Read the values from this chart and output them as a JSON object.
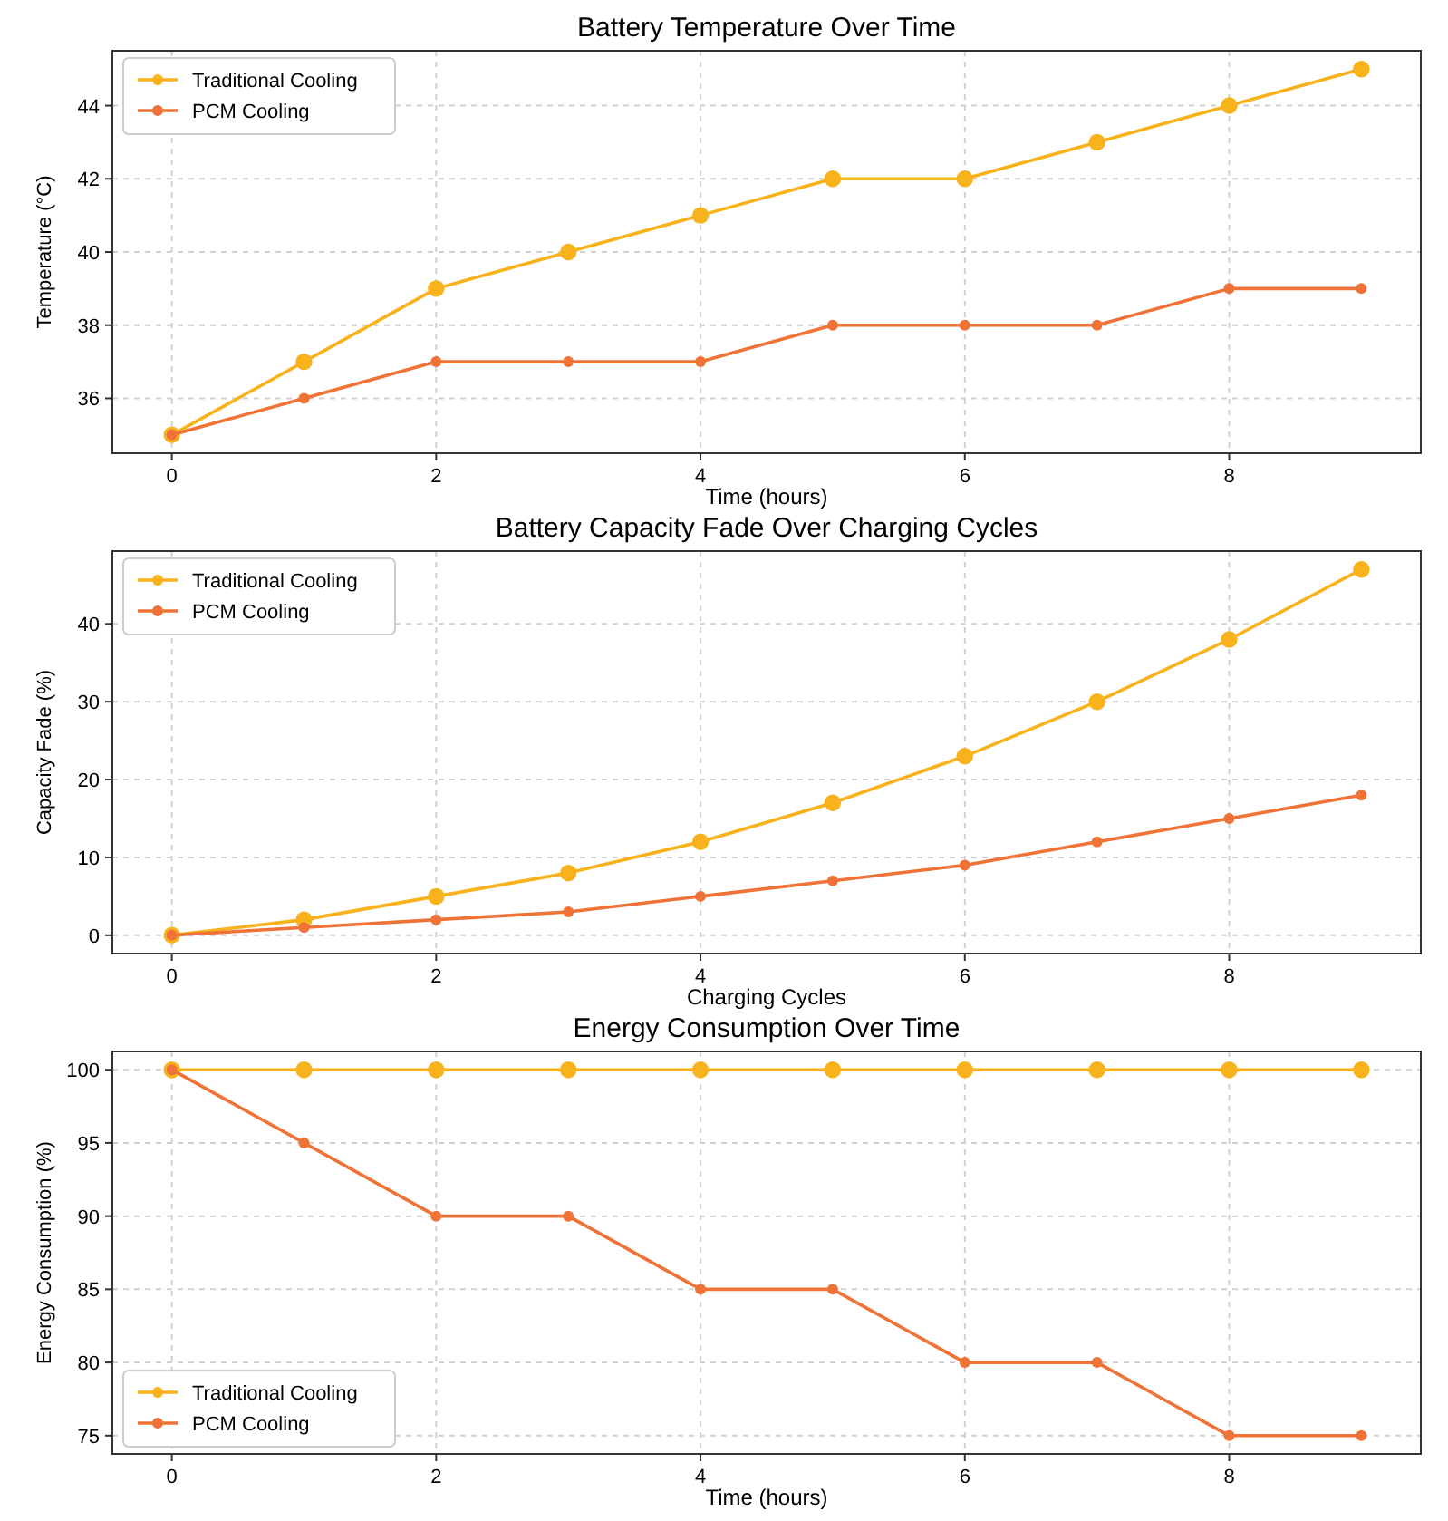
{
  "chart_data": [
    {
      "type": "line",
      "title": "Battery Temperature Over Time",
      "xlabel": "Time (hours)",
      "ylabel": "Temperature (°C)",
      "x": [
        0,
        1,
        2,
        3,
        4,
        5,
        6,
        7,
        8,
        9
      ],
      "xlim": [
        -0.45,
        9.45
      ],
      "xticks": [
        0,
        2,
        4,
        6,
        8
      ],
      "ylim": [
        34.5,
        45.5
      ],
      "yticks": [
        36,
        38,
        40,
        42,
        44
      ],
      "grid": true,
      "legend": "top left",
      "marker": "circle",
      "series": [
        {
          "name": "Traditional Cooling",
          "color": "#f7b21c",
          "values": [
            35,
            37,
            39,
            40,
            41,
            42,
            42,
            43,
            44,
            45
          ]
        },
        {
          "name": "PCM Cooling",
          "color": "#ef7236",
          "values": [
            35,
            36,
            37,
            37,
            37,
            38,
            38,
            38,
            39,
            39
          ]
        }
      ]
    },
    {
      "type": "line",
      "title": "Battery Capacity Fade Over Charging Cycles",
      "xlabel": "Charging Cycles",
      "ylabel": "Capacity Fade (%)",
      "x": [
        0,
        1,
        2,
        3,
        4,
        5,
        6,
        7,
        8,
        9
      ],
      "xlim": [
        -0.45,
        9.45
      ],
      "xticks": [
        0,
        2,
        4,
        6,
        8
      ],
      "ylim": [
        -2.35,
        49.35
      ],
      "yticks": [
        0,
        10,
        20,
        30,
        40
      ],
      "grid": true,
      "legend": "top left",
      "marker": "circle",
      "series": [
        {
          "name": "Traditional Cooling",
          "color": "#f7b21c",
          "values": [
            0,
            2,
            5,
            8,
            12,
            17,
            23,
            30,
            38,
            47
          ]
        },
        {
          "name": "PCM Cooling",
          "color": "#ef7236",
          "values": [
            0,
            1,
            2,
            3,
            5,
            7,
            9,
            12,
            15,
            18
          ]
        }
      ]
    },
    {
      "type": "line",
      "title": "Energy Consumption Over Time",
      "xlabel": "Time (hours)",
      "ylabel": "Energy Consumption (%)",
      "x": [
        0,
        1,
        2,
        3,
        4,
        5,
        6,
        7,
        8,
        9
      ],
      "xlim": [
        -0.45,
        9.45
      ],
      "xticks": [
        0,
        2,
        4,
        6,
        8
      ],
      "ylim": [
        73.75,
        101.25
      ],
      "yticks": [
        75,
        80,
        85,
        90,
        95,
        100
      ],
      "grid": true,
      "legend": "bottom left",
      "marker": "circle",
      "series": [
        {
          "name": "Traditional Cooling",
          "color": "#f7b21c",
          "values": [
            100,
            100,
            100,
            100,
            100,
            100,
            100,
            100,
            100,
            100
          ]
        },
        {
          "name": "PCM Cooling",
          "color": "#ef7236",
          "values": [
            100,
            95,
            90,
            90,
            85,
            85,
            80,
            80,
            75,
            75
          ]
        }
      ]
    }
  ]
}
